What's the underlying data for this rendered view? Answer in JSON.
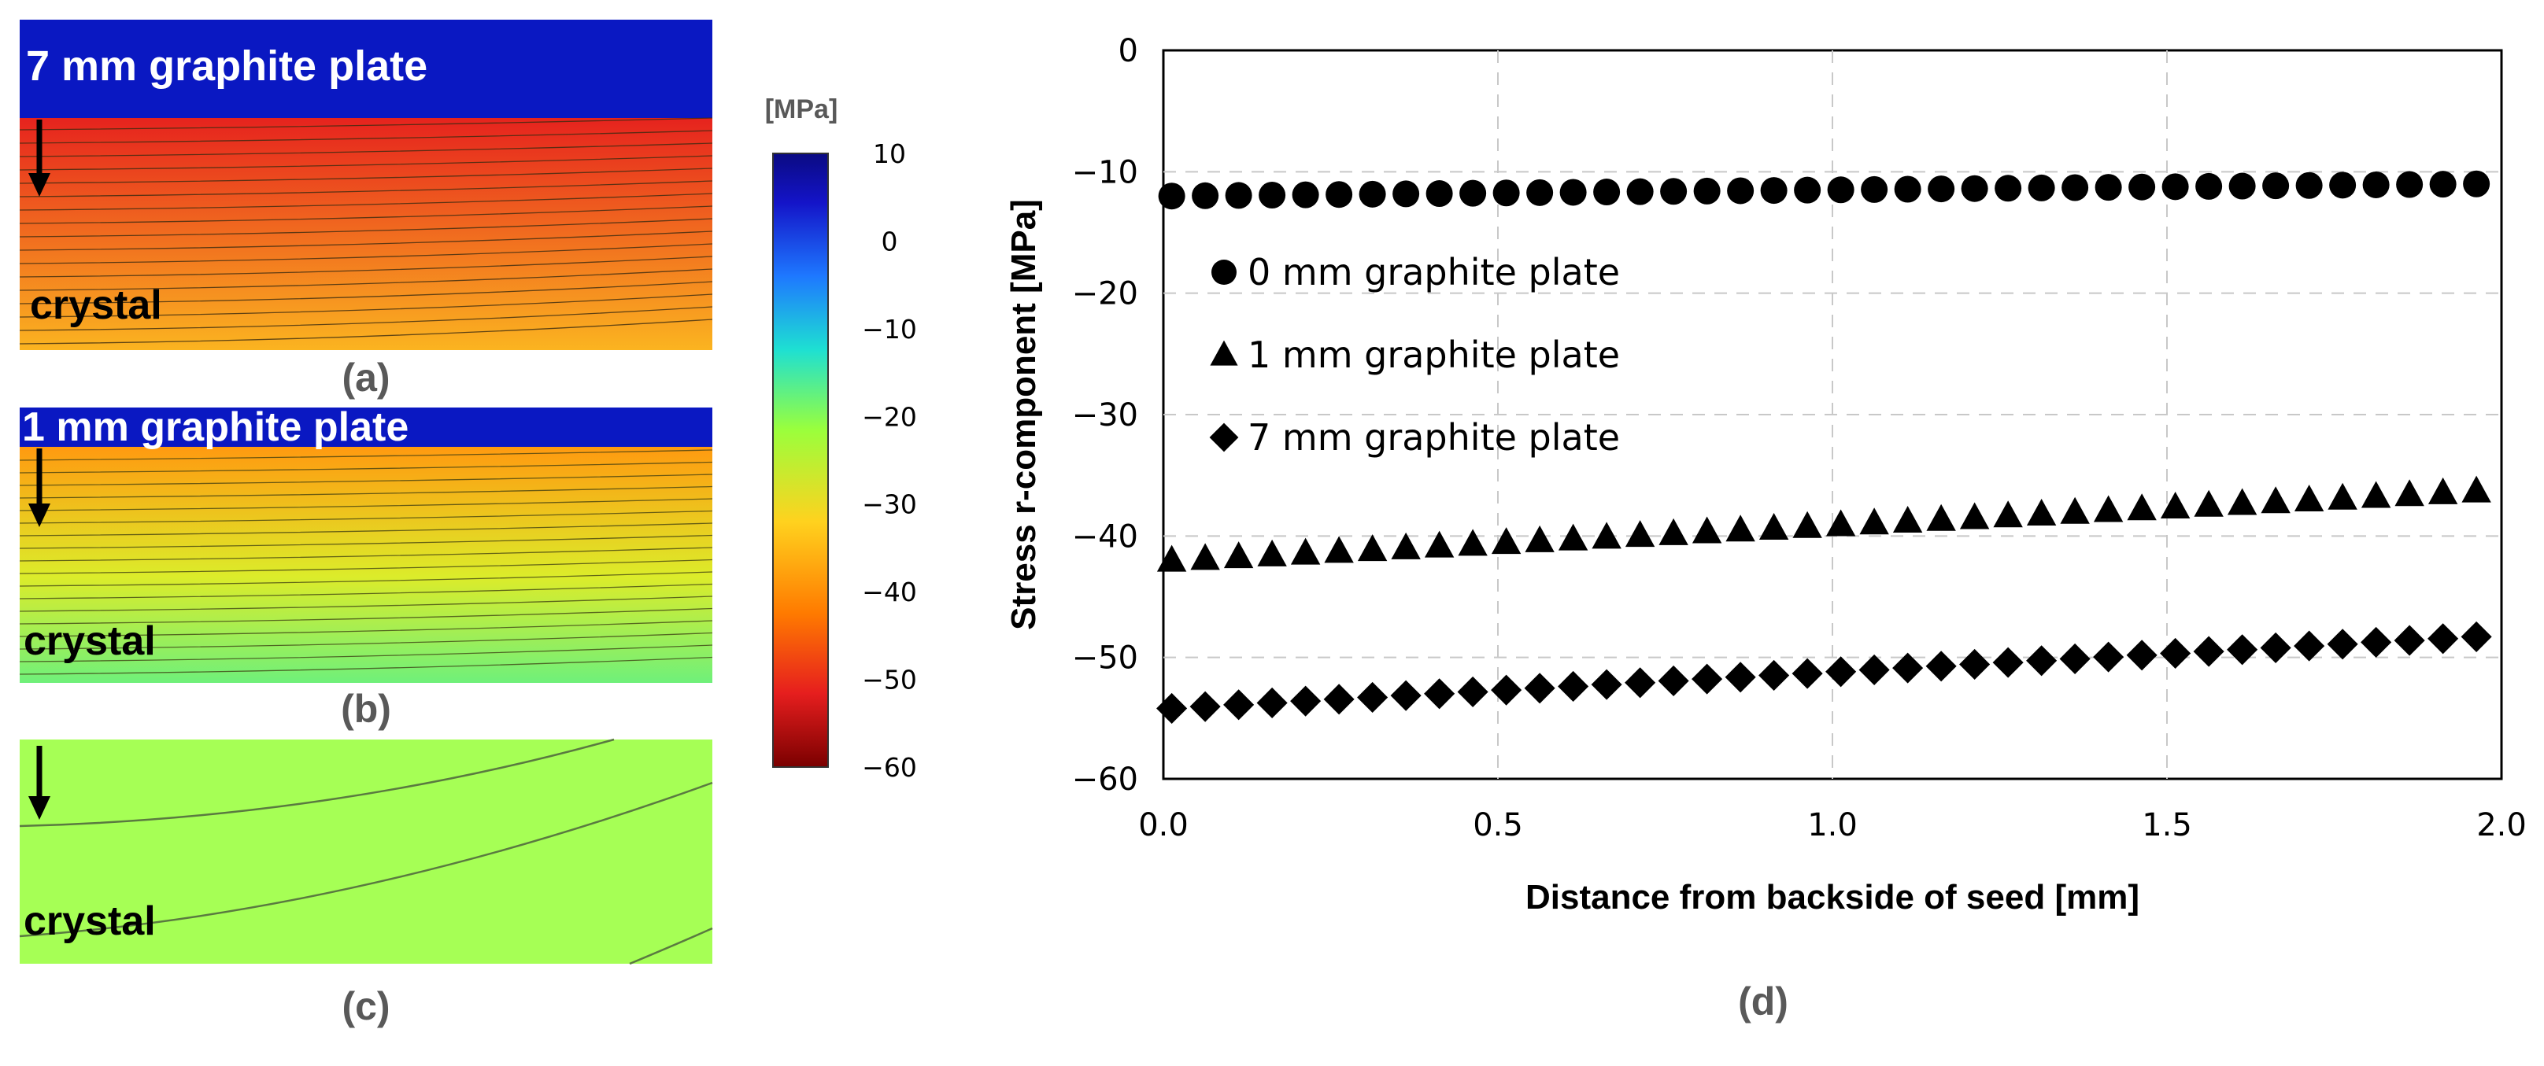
{
  "panels": {
    "a": {
      "caption": "(a)",
      "plate_label": "7 mm graphite plate",
      "region_label": "crystal"
    },
    "b": {
      "caption": "(b)",
      "plate_label": "1 mm graphite plate",
      "region_label": "crystal"
    },
    "c": {
      "caption": "(c)",
      "region_label": "crystal"
    },
    "d": {
      "caption": "(d)"
    }
  },
  "colorbar": {
    "unit_label": "[MPa]",
    "ticks": [
      "10",
      "0",
      "−10",
      "−20",
      "−30",
      "−40",
      "−50",
      "−60"
    ],
    "min": -60,
    "max": 10,
    "stops": [
      "#7a0000",
      "#e61e1e",
      "#ff7a00",
      "#ffd21e",
      "#9aff3c",
      "#1ee0d2",
      "#1e78ff",
      "#1414c8",
      "#0a0a82"
    ]
  },
  "fields": {
    "plate_color": "#0a18c2",
    "a_top": "#e6231e",
    "a_bottom": "#fbb420",
    "b_top": "#ff9a10",
    "b_bottom": "#6ff07a",
    "c_fill": "#a6ff55"
  },
  "chart_data": {
    "type": "scatter",
    "xlabel": "Distance from backside of seed [mm]",
    "ylabel": "Stress r-component [MPa]",
    "xlim": [
      0,
      2
    ],
    "ylim": [
      -60,
      0
    ],
    "xticks": [
      "0.0",
      "0.5",
      "1.0",
      "1.5",
      "2.0"
    ],
    "yticks": [
      "0",
      "−10",
      "−20",
      "−30",
      "−40",
      "−50",
      "−60"
    ],
    "x": [
      0.0,
      0.05,
      0.1,
      0.15,
      0.2,
      0.25,
      0.3,
      0.35,
      0.4,
      0.45,
      0.5,
      0.55,
      0.6,
      0.65,
      0.7,
      0.75,
      0.8,
      0.85,
      0.9,
      0.95,
      1.0,
      1.05,
      1.1,
      1.15,
      1.2,
      1.25,
      1.3,
      1.35,
      1.4,
      1.45,
      1.5,
      1.55,
      1.6,
      1.65,
      1.7,
      1.75,
      1.8,
      1.85,
      1.9,
      1.95
    ],
    "series": [
      {
        "name": "0 mm graphite plate",
        "marker": "circle",
        "start": -12.0,
        "end": -11.0
      },
      {
        "name": "1 mm graphite plate",
        "marker": "triangle",
        "start": -42.0,
        "end": -36.3
      },
      {
        "name": "7 mm graphite plate",
        "marker": "diamond",
        "start": -54.2,
        "end": -48.3
      }
    ]
  }
}
